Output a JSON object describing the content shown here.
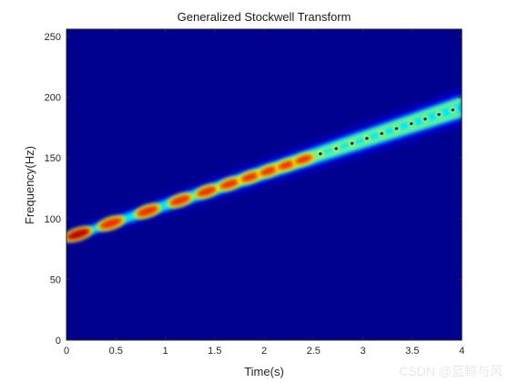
{
  "chart_data": {
    "type": "heatmap",
    "title": "Generalized Stockwell Transform",
    "xlabel": "Time(s)",
    "ylabel": "Frequency(Hz)",
    "xlim": [
      0,
      4
    ],
    "ylim": [
      0,
      256
    ],
    "xticks": [
      0,
      0.5,
      1,
      1.5,
      2,
      2.5,
      3,
      3.5,
      4
    ],
    "xtick_labels": [
      "0",
      "0.5",
      "1",
      "1.5",
      "2",
      "2.5",
      "3",
      "3.5",
      "4"
    ],
    "yticks": [
      0,
      50,
      100,
      150,
      200,
      250
    ],
    "ytick_labels": [
      "0",
      "50",
      "100",
      "150",
      "200",
      "250"
    ],
    "colormap": "jet",
    "grid": false,
    "ridge": {
      "description_free": true,
      "t_start": 0,
      "f_start": 84,
      "t_end": 4,
      "f_end": 192
    },
    "colors": {
      "background": "#00008f",
      "low": "#0000ff",
      "mid": "#00ffff",
      "high": "#ffff00",
      "peak": "#c00000"
    }
  },
  "watermark": "CSDN @蓝鲸与风"
}
